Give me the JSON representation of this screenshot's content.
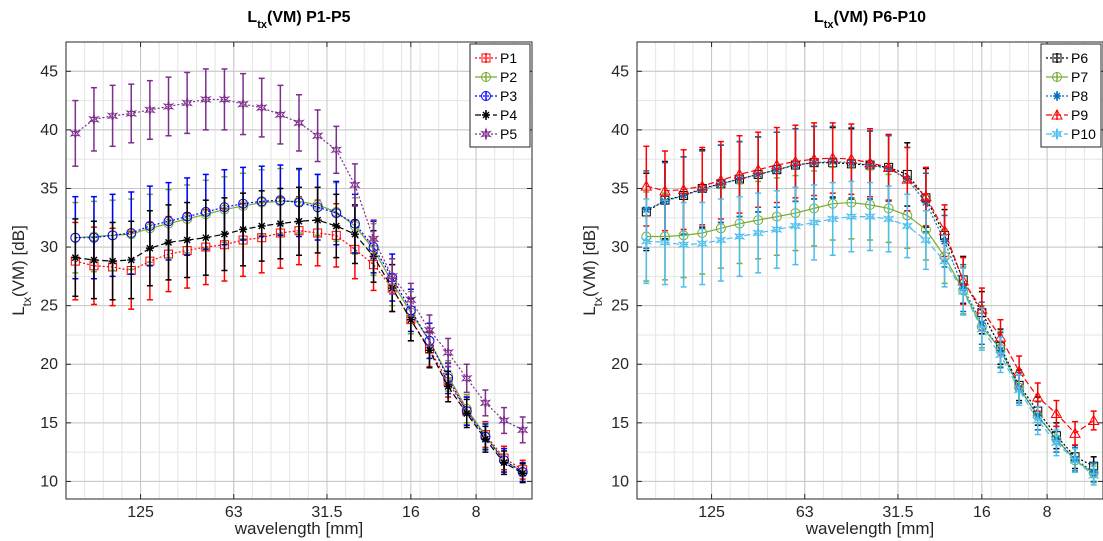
{
  "chart_data": [
    {
      "type": "line",
      "title": "L",
      "title_sub": "tx",
      "title_rest": "(VM) P1-P5",
      "xlabel": "wavelength [mm]",
      "ylabel": "L",
      "ylabel_sub": "tx",
      "ylabel_rest": "(VM) [dB]",
      "xlim": [
        0,
        25
      ],
      "ylim": [
        8.5,
        47.5
      ],
      "x_ticks": [
        {
          "x": 4,
          "label": "125"
        },
        {
          "x": 9,
          "label": "63"
        },
        {
          "x": 14,
          "label": "31.5"
        },
        {
          "x": 18.5,
          "label": "16"
        },
        {
          "x": 22,
          "label": "8"
        }
      ],
      "y_ticks": [
        10,
        15,
        20,
        25,
        30,
        35,
        40,
        45
      ],
      "grid": true,
      "legend_position": "top-right",
      "x": [
        0.5,
        1.5,
        2.5,
        3.5,
        4.5,
        5.5,
        6.5,
        7.5,
        8.5,
        9.5,
        10.5,
        11.5,
        12.5,
        13.5,
        14.5,
        15.5,
        16.5,
        17.5,
        18.5,
        19.5,
        20.5,
        21.5,
        22.5,
        23.5,
        24.5
      ],
      "series": [
        {
          "name": "P1",
          "color": "#ff0000",
          "dash": "2,2",
          "marker": "square",
          "values": [
            28.8,
            28.4,
            28.3,
            28.0,
            28.8,
            29.4,
            29.7,
            30.0,
            30.2,
            30.6,
            30.8,
            31.2,
            31.4,
            31.2,
            31.0,
            29.8,
            28.5,
            26.5,
            23.8,
            21.3,
            18.5,
            16.0,
            14.0,
            12.0,
            11.0
          ],
          "errors": [
            3.3,
            3.3,
            3.3,
            3.3,
            3.3,
            3.2,
            3.2,
            3.2,
            3.1,
            3.1,
            3.0,
            3.0,
            2.9,
            2.8,
            2.7,
            2.5,
            2.2,
            2.0,
            1.8,
            1.5,
            1.3,
            1.2,
            1.1,
            1.0,
            0.8
          ]
        },
        {
          "name": "P2",
          "color": "#77ac30",
          "dash": "",
          "marker": "circle",
          "values": [
            30.8,
            30.9,
            31.0,
            31.1,
            31.6,
            32.0,
            32.4,
            32.8,
            33.2,
            33.5,
            33.8,
            33.9,
            33.9,
            33.6,
            33.0,
            31.8,
            29.8,
            27.0,
            24.4,
            22.0,
            19.0,
            16.2,
            13.9,
            11.8,
            10.8
          ],
          "errors": [
            3.0,
            3.0,
            3.0,
            3.0,
            2.9,
            2.9,
            2.9,
            2.9,
            2.8,
            2.8,
            2.8,
            2.8,
            2.7,
            2.6,
            2.5,
            2.4,
            2.2,
            2.0,
            1.8,
            1.5,
            1.3,
            1.2,
            1.1,
            1.0,
            0.8
          ]
        },
        {
          "name": "P3",
          "color": "#0000ff",
          "dash": "2,2",
          "marker": "circle",
          "values": [
            30.8,
            30.8,
            31.0,
            31.2,
            31.8,
            32.2,
            32.6,
            33.0,
            33.4,
            33.7,
            33.9,
            34.0,
            33.8,
            33.4,
            32.9,
            32.0,
            30.0,
            27.4,
            24.6,
            22.0,
            18.8,
            16.0,
            13.8,
            11.8,
            10.8
          ],
          "errors": [
            3.5,
            3.5,
            3.5,
            3.5,
            3.4,
            3.3,
            3.3,
            3.2,
            3.2,
            3.1,
            3.0,
            3.0,
            2.9,
            2.8,
            2.7,
            2.5,
            2.2,
            2.0,
            1.8,
            1.5,
            1.3,
            1.2,
            1.1,
            1.0,
            0.8
          ]
        },
        {
          "name": "P4",
          "color": "#000000",
          "dash": "6,3",
          "marker": "asterisk",
          "values": [
            29.1,
            28.9,
            28.8,
            28.9,
            29.9,
            30.4,
            30.6,
            30.8,
            31.1,
            31.5,
            31.8,
            32.0,
            32.2,
            32.3,
            31.8,
            31.1,
            29.2,
            26.5,
            23.8,
            21.2,
            18.1,
            15.8,
            13.6,
            11.6,
            10.7
          ],
          "errors": [
            3.3,
            3.3,
            3.3,
            3.3,
            3.2,
            3.2,
            3.2,
            3.2,
            3.1,
            3.1,
            3.0,
            3.0,
            2.9,
            2.8,
            2.7,
            2.5,
            2.2,
            2.0,
            1.8,
            1.5,
            1.3,
            1.2,
            1.1,
            1.0,
            0.8
          ]
        },
        {
          "name": "P5",
          "color": "#7e2f8e",
          "dash": "2,2",
          "marker": "star",
          "values": [
            39.7,
            40.9,
            41.2,
            41.4,
            41.7,
            42.0,
            42.3,
            42.6,
            42.6,
            42.2,
            41.9,
            41.3,
            40.6,
            39.5,
            38.3,
            35.3,
            30.7,
            27.5,
            25.5,
            22.9,
            21.0,
            18.8,
            16.7,
            15.2,
            14.4
          ],
          "errors": [
            2.8,
            2.7,
            2.6,
            2.5,
            2.5,
            2.5,
            2.6,
            2.6,
            2.6,
            2.6,
            2.5,
            2.5,
            2.4,
            2.2,
            2.0,
            1.8,
            1.6,
            1.5,
            1.4,
            1.3,
            1.2,
            1.2,
            1.1,
            1.1,
            1.1
          ]
        }
      ]
    },
    {
      "type": "line",
      "title": "L",
      "title_sub": "tx",
      "title_rest": "(VM) P6-P10",
      "xlabel": "wavelength [mm]",
      "ylabel": "L",
      "ylabel_sub": "tx",
      "ylabel_rest": "(VM) [dB]",
      "xlim": [
        0,
        25
      ],
      "ylim": [
        8.5,
        47.5
      ],
      "x_ticks": [
        {
          "x": 4,
          "label": "125"
        },
        {
          "x": 9,
          "label": "63"
        },
        {
          "x": 14,
          "label": "31.5"
        },
        {
          "x": 18.5,
          "label": "16"
        },
        {
          "x": 22,
          "label": "8"
        }
      ],
      "y_ticks": [
        10,
        15,
        20,
        25,
        30,
        35,
        40,
        45
      ],
      "grid": true,
      "legend_position": "top-right",
      "x": [
        0.5,
        1.5,
        2.5,
        3.5,
        4.5,
        5.5,
        6.5,
        7.5,
        8.5,
        9.5,
        10.5,
        11.5,
        12.5,
        13.5,
        14.5,
        15.5,
        16.5,
        17.5,
        18.5,
        19.5,
        20.5,
        21.5,
        22.5,
        23.5,
        24.5
      ],
      "series": [
        {
          "name": "P6",
          "color": "#000000",
          "dash": "2,2",
          "marker": "square",
          "values": [
            33.0,
            34.0,
            34.4,
            35.0,
            35.4,
            35.8,
            36.2,
            36.6,
            37.0,
            37.2,
            37.2,
            37.1,
            37.0,
            36.8,
            36.2,
            34.2,
            31.0,
            27.2,
            24.4,
            21.5,
            18.2,
            16.0,
            13.9,
            12.1,
            11.3
          ],
          "errors": [
            3.3,
            3.3,
            3.3,
            3.3,
            3.3,
            3.2,
            3.2,
            3.2,
            3.1,
            3.1,
            3.0,
            3.0,
            2.9,
            2.8,
            2.7,
            2.5,
            2.2,
            2.0,
            1.8,
            1.5,
            1.3,
            1.2,
            1.1,
            1.0,
            0.8
          ]
        },
        {
          "name": "P7",
          "color": "#77ac30",
          "dash": "",
          "marker": "circle",
          "values": [
            30.9,
            30.9,
            31.0,
            31.2,
            31.6,
            32.0,
            32.3,
            32.6,
            32.9,
            33.3,
            33.7,
            33.8,
            33.6,
            33.3,
            32.7,
            31.5,
            29.2,
            26.3,
            23.2,
            21.3,
            18.0,
            15.6,
            13.6,
            11.8,
            10.7
          ],
          "errors": [
            3.8,
            3.7,
            3.6,
            3.5,
            3.4,
            3.4,
            3.3,
            3.3,
            3.2,
            3.2,
            3.1,
            3.1,
            3.0,
            2.9,
            2.8,
            2.6,
            2.3,
            2.0,
            1.8,
            1.5,
            1.3,
            1.2,
            1.1,
            1.0,
            0.8
          ]
        },
        {
          "name": "P8",
          "color": "#0072bd",
          "dash": "2,2",
          "marker": "asterisk",
          "values": [
            33.2,
            33.9,
            34.4,
            34.9,
            35.4,
            35.8,
            36.2,
            36.6,
            37.0,
            37.2,
            37.3,
            37.2,
            37.0,
            36.7,
            35.8,
            33.8,
            30.5,
            26.5,
            23.5,
            21.2,
            18.0,
            15.6,
            13.6,
            11.9,
            10.8
          ],
          "errors": [
            3.3,
            3.3,
            3.3,
            3.3,
            3.3,
            3.2,
            3.2,
            3.2,
            3.1,
            3.1,
            3.0,
            3.0,
            2.9,
            2.8,
            2.7,
            2.5,
            2.2,
            2.0,
            1.8,
            1.5,
            1.3,
            1.2,
            1.1,
            1.0,
            0.8
          ]
        },
        {
          "name": "P9",
          "color": "#ff0000",
          "dash": "6,3",
          "marker": "triangle",
          "values": [
            35.2,
            34.8,
            34.9,
            35.2,
            35.7,
            36.2,
            36.6,
            37.0,
            37.3,
            37.5,
            37.6,
            37.5,
            37.2,
            36.8,
            35.8,
            34.3,
            31.4,
            27.1,
            24.7,
            22.3,
            19.4,
            17.2,
            15.8,
            14.1,
            15.2
          ],
          "errors": [
            3.4,
            3.4,
            3.4,
            3.3,
            3.3,
            3.3,
            3.2,
            3.2,
            3.1,
            3.1,
            3.0,
            3.0,
            2.9,
            2.8,
            2.7,
            2.5,
            2.2,
            2.0,
            1.8,
            1.5,
            1.3,
            1.2,
            1.1,
            1.0,
            0.8
          ]
        },
        {
          "name": "P10",
          "color": "#4dbeee",
          "dash": "6,3",
          "marker": "star",
          "values": [
            30.5,
            30.4,
            30.2,
            30.3,
            30.6,
            30.9,
            31.2,
            31.5,
            31.8,
            32.1,
            32.4,
            32.6,
            32.6,
            32.4,
            31.8,
            30.6,
            28.8,
            26.2,
            23.0,
            20.8,
            17.8,
            15.2,
            13.3,
            11.8,
            10.5
          ],
          "errors": [
            3.6,
            3.6,
            3.6,
            3.5,
            3.5,
            3.4,
            3.4,
            3.3,
            3.3,
            3.2,
            3.1,
            3.0,
            2.9,
            2.8,
            2.7,
            2.5,
            2.2,
            2.0,
            1.8,
            1.5,
            1.3,
            1.2,
            1.1,
            1.0,
            0.8
          ]
        }
      ]
    }
  ]
}
